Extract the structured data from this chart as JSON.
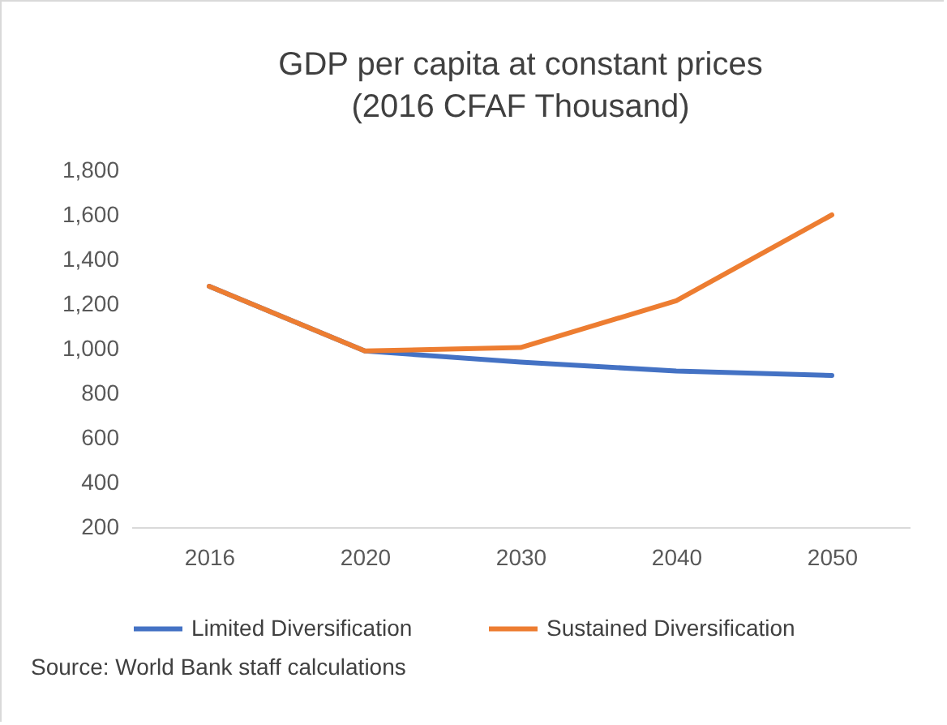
{
  "chart_data": {
    "type": "line",
    "title": "GDP per capita at constant prices",
    "subtitle": "(2016 CFAF Thousand)",
    "categories": [
      "2016",
      "2020",
      "2030",
      "2040",
      "2050"
    ],
    "series": [
      {
        "name": "Limited Diversification",
        "color": "#4472c4",
        "values": [
          1280,
          990,
          940,
          900,
          880
        ]
      },
      {
        "name": "Sustained Diversification",
        "color": "#ed7d31",
        "values": [
          1280,
          990,
          1005,
          1215,
          1600
        ]
      }
    ],
    "ylim": [
      200,
      1800
    ],
    "yticks": [
      200,
      400,
      600,
      800,
      {
        "value": 1000,
        "label": "1,000"
      },
      {
        "value": 1200,
        "label": "1,200"
      },
      {
        "value": 1400,
        "label": "1,400"
      },
      {
        "value": 1600,
        "label": "1,600"
      },
      {
        "value": 1800,
        "label": "1,800"
      }
    ],
    "grid": false,
    "legend": "bottom",
    "marker": "none",
    "annotations": [
      "Source: World Bank staff calculations"
    ]
  }
}
